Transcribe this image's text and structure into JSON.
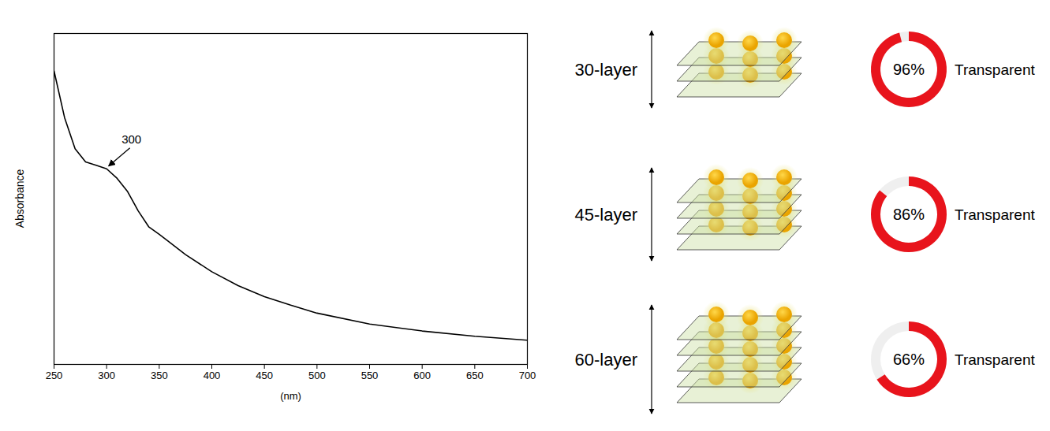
{
  "chart_data": {
    "type": "line",
    "xlabel": "(nm)",
    "ylabel": "Absorbance",
    "x": [
      250,
      260,
      270,
      280,
      290,
      300,
      310,
      320,
      330,
      340,
      350,
      360,
      375,
      400,
      425,
      450,
      475,
      500,
      550,
      600,
      650,
      700
    ],
    "values": [
      0.887,
      0.746,
      0.652,
      0.612,
      0.602,
      0.591,
      0.562,
      0.522,
      0.464,
      0.416,
      0.393,
      0.369,
      0.332,
      0.28,
      0.238,
      0.205,
      0.179,
      0.155,
      0.122,
      0.101,
      0.085,
      0.073
    ],
    "color": "#000000",
    "xlim": [
      250,
      700
    ],
    "xticks": [
      250,
      300,
      350,
      400,
      450,
      500,
      550,
      600,
      650,
      700
    ],
    "ylim": [
      0,
      1
    ],
    "yticks": [],
    "tick_labels": "x",
    "annotations": [
      {
        "text": "300",
        "x": 300
      }
    ]
  },
  "diagram": {
    "items": [
      {
        "label": "30-layer",
        "value": 96,
        "value_label": "96%",
        "status": "Transparent"
      },
      {
        "label": "45-layer",
        "value": 86,
        "value_label": "86%",
        "status": "Transparent"
      },
      {
        "label": "60-layer",
        "value": 66,
        "value_label": "66%",
        "status": "Transparent"
      }
    ],
    "color": "#e8141c"
  }
}
